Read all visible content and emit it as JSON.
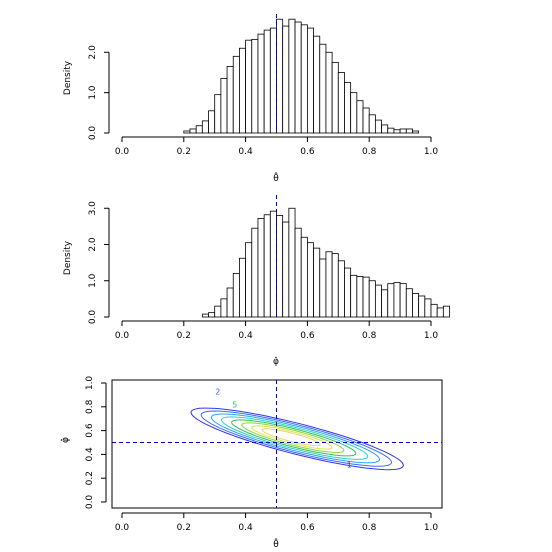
{
  "chart_data": [
    {
      "type": "bar",
      "xlabel": "θ̂",
      "ylabel": "Density",
      "xlim": [
        0,
        1
      ],
      "ylim": [
        0,
        2.8
      ],
      "x_ticks": [
        "0.0",
        "0.2",
        "0.4",
        "0.6",
        "0.8",
        "1.0"
      ],
      "y_ticks": [
        "0.0",
        "1.0",
        "2.0"
      ],
      "vline": 0.5,
      "bin_start": 0.2,
      "bin_width": 0.02,
      "values": [
        0.05,
        0.1,
        0.18,
        0.3,
        0.55,
        0.95,
        1.35,
        1.65,
        1.9,
        2.1,
        2.3,
        2.32,
        2.45,
        2.55,
        2.6,
        2.82,
        2.65,
        2.82,
        2.75,
        2.68,
        2.6,
        2.4,
        2.2,
        2.0,
        1.75,
        1.5,
        1.25,
        1.0,
        0.8,
        0.62,
        0.45,
        0.32,
        0.2,
        0.12,
        0.08,
        0.1,
        0.1,
        0.05
      ]
    },
    {
      "type": "bar",
      "xlabel": "φ̂",
      "ylabel": "Density",
      "xlim": [
        0,
        1
      ],
      "ylim": [
        0,
        3.2
      ],
      "x_ticks": [
        "0.0",
        "0.2",
        "0.4",
        "0.6",
        "0.8",
        "1.0"
      ],
      "y_ticks": [
        "0.0",
        "1.0",
        "2.0",
        "3.0"
      ],
      "vline": 0.5,
      "bin_start": 0.26,
      "bin_width": 0.02,
      "values": [
        0.08,
        0.12,
        0.3,
        0.5,
        0.8,
        1.2,
        1.62,
        2.05,
        2.45,
        2.72,
        2.82,
        2.92,
        2.8,
        2.62,
        3.0,
        2.45,
        2.2,
        2.05,
        1.9,
        1.6,
        1.8,
        1.75,
        1.55,
        1.35,
        1.15,
        1.12,
        1.1,
        1.0,
        0.88,
        0.75,
        0.92,
        0.95,
        0.92,
        0.78,
        0.65,
        0.58,
        0.5,
        0.35,
        0.25,
        0.3
      ]
    },
    {
      "type": "contour",
      "xlabel": "θ̂",
      "ylabel": "φ̂",
      "xlim": [
        0,
        1
      ],
      "ylim": [
        0,
        1
      ],
      "x_ticks": [
        "0.0",
        "0.2",
        "0.4",
        "0.6",
        "0.8",
        "1.0"
      ],
      "y_ticks": [
        "0.0",
        "0.2",
        "0.4",
        "0.6",
        "0.8",
        "1.0"
      ],
      "vline": 0.5,
      "hline": 0.5,
      "center": [
        0.54,
        0.55
      ],
      "slope": -0.72,
      "sigma_u": 0.16,
      "sigma_v": 0.042,
      "levels": [
        1,
        2,
        3,
        4,
        5,
        6,
        7,
        8
      ],
      "level_labels": [
        "1",
        "2",
        "5"
      ],
      "colors": [
        "#3333ee",
        "#3f6df0",
        "#2aa4f0",
        "#2ed0c8",
        "#29c25b",
        "#8fd43e",
        "#d6e84e",
        "#f2d06b"
      ]
    }
  ]
}
